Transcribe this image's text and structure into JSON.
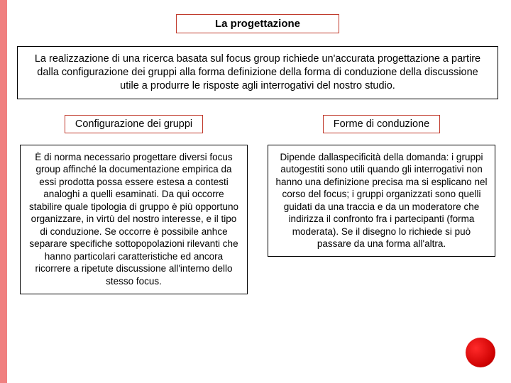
{
  "colors": {
    "stripe": "#f08080",
    "box_border_red": "#c0392b",
    "box_border_black": "#000000",
    "background": "#ffffff",
    "dot_light": "#ff2a2a",
    "dot_dark": "#990000"
  },
  "fonts": {
    "title_size": 15,
    "intro_size": 14.5,
    "sub_size": 14.5,
    "body_size": 13.5
  },
  "title": "La progettazione",
  "intro": "La realizzazione di una ricerca basata sul focus group richiede un'accurata progettazione a partire dalla configurazione dei gruppi alla forma definizione della forma di conduzione della discussione utile a produrre le risposte agli interrogativi del nostro studio.",
  "left": {
    "heading": "Configurazione dei gruppi",
    "body": "È di norma necessario progettare diversi focus group affinché la documentazione empirica da essi prodotta possa essere estesa a contesti analoghi a quelli esaminati. Da qui occorre stabilire quale tipologia di gruppo è più opportuno organizzare, in virtù del nostro interesse, e il tipo di conduzione. Se occorre è possibile anhce separare specifiche sottopopolazioni rilevanti che hanno particolari caratteristiche ed ancora ricorrere a ripetute discussione all'interno dello stesso focus."
  },
  "right": {
    "heading": "Forme di conduzione",
    "body": "Dipende dallaspecificità della domanda: i gruppi autogestiti sono utili quando gli interrogativi non hanno una definizione precisa ma si esplicano nel corso del focus; i gruppi organizzati sono quelli guidati da una traccia e da un moderatore che indirizza il confronto fra i partecipanti (forma moderata). Se il disegno lo richiede si può passare da una forma all'altra."
  }
}
